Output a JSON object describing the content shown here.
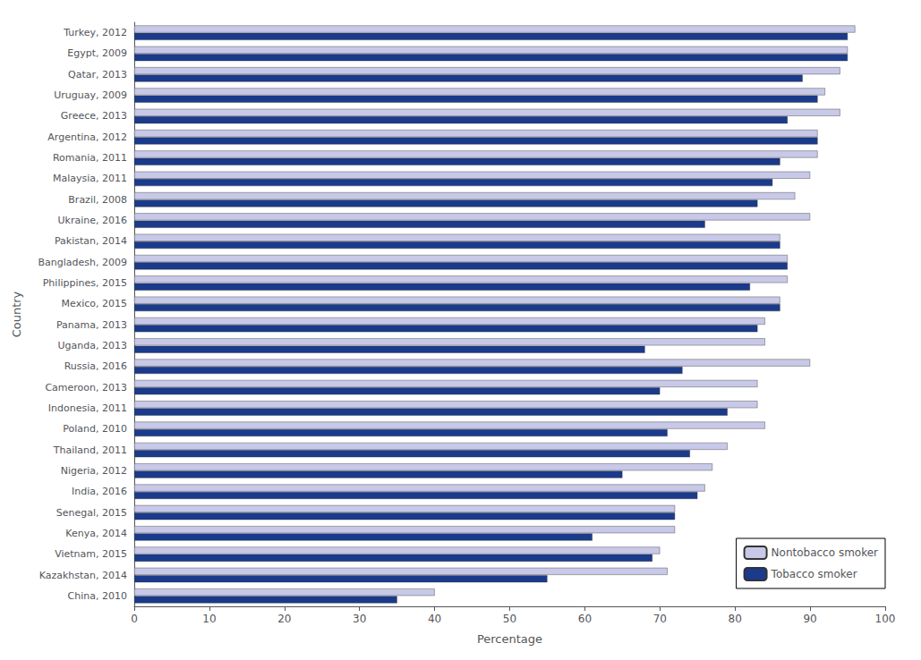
{
  "chart_data": {
    "type": "bar",
    "orientation": "horizontal",
    "x_label": "Percentage",
    "y_label": "Country",
    "categories": [
      "Turkey, 2012",
      "Egypt, 2009",
      "Qatar, 2013",
      "Uruguay, 2009",
      "Greece, 2013",
      "Argentina, 2012",
      "Romania, 2011",
      "Malaysia, 2011",
      "Brazil, 2008",
      "Ukraine, 2016",
      "Pakistan, 2014",
      "Bangladesh, 2009",
      "Philippines, 2015",
      "Mexico, 2015",
      "Panama, 2013",
      "Uganda, 2013",
      "Russia, 2016",
      "Cameroon, 2013",
      "Indonesia, 2011",
      "Poland, 2010",
      "Thailand, 2011",
      "Nigeria, 2012",
      "India, 2016",
      "Senegal, 2015",
      "Kenya, 2014",
      "Vietnam, 2015",
      "Kazakhstan, 2014",
      "China, 2010"
    ],
    "series": [
      {
        "name": "Nontobacco smoker",
        "color": "#c8c8e8",
        "values": [
          96,
          95,
          94,
          92,
          94,
          91,
          91,
          90,
          88,
          90,
          86,
          87,
          87,
          86,
          84,
          84,
          90,
          83,
          83,
          84,
          79,
          77,
          76,
          72,
          72,
          70,
          71,
          40
        ]
      },
      {
        "name": "Tobacco smoker",
        "color": "#1a3a8c",
        "values": [
          95,
          95,
          89,
          91,
          87,
          91,
          86,
          85,
          83,
          76,
          86,
          87,
          82,
          86,
          83,
          68,
          73,
          70,
          79,
          71,
          74,
          65,
          75,
          72,
          61,
          69,
          55,
          35
        ]
      }
    ],
    "xlim": [
      0,
      100
    ],
    "xticks": [
      0,
      10,
      20,
      30,
      40,
      50,
      60,
      70,
      80,
      90,
      100
    ],
    "grid": false,
    "legend": "lower right"
  }
}
